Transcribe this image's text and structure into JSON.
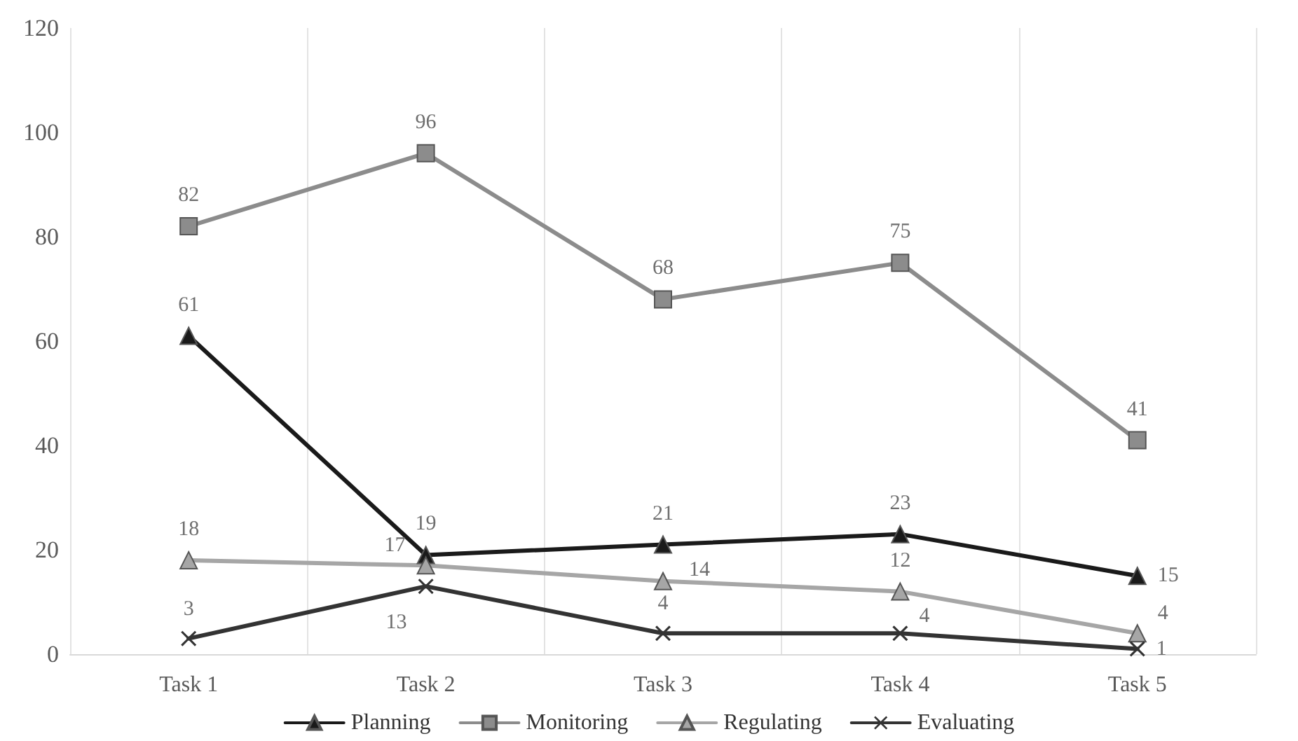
{
  "chart_data": {
    "type": "line",
    "categories": [
      "Task 1",
      "Task 2",
      "Task 3",
      "Task 4",
      "Task 5"
    ],
    "ylim": [
      0,
      120
    ],
    "yticks": [
      0,
      20,
      40,
      60,
      80,
      100,
      120
    ],
    "grid": "x",
    "legend": "bottom",
    "data_labels": true,
    "series": [
      {
        "name": "Planning",
        "color": "#1a1a1a",
        "marker": "triangle",
        "values": [
          61,
          19,
          21,
          23,
          15
        ]
      },
      {
        "name": "Monitoring",
        "color": "#8c8c8c",
        "marker": "square",
        "values": [
          82,
          96,
          68,
          75,
          41
        ]
      },
      {
        "name": "Regulating",
        "color": "#a6a6a6",
        "marker": "triangle",
        "values": [
          18,
          17,
          14,
          12,
          4
        ]
      },
      {
        "name": "Evaluating",
        "color": "#333333",
        "marker": "cross",
        "values": [
          3,
          13,
          4,
          4,
          1
        ]
      }
    ]
  }
}
